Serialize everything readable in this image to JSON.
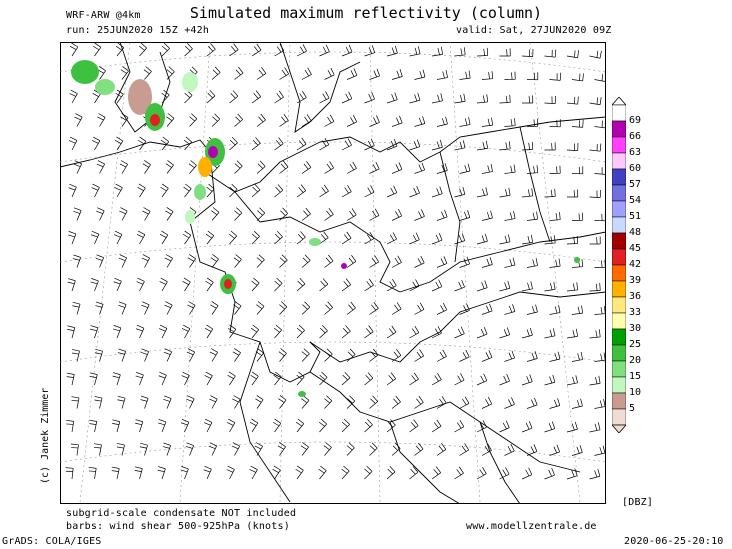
{
  "header": {
    "model": "WRF-ARW @4km",
    "title": "Simulated maximum reflectivity (column)",
    "run": "run: 25JUN2020 15Z +42h",
    "valid": "valid: Sat, 27JUN2020 09Z"
  },
  "legend": {
    "unit": "[DBZ]",
    "levels": [
      "69",
      "66",
      "63",
      "60",
      "57",
      "54",
      "51",
      "48",
      "45",
      "42",
      "39",
      "36",
      "33",
      "30",
      "25",
      "20",
      "15",
      "10",
      "5"
    ],
    "colors": [
      "#ffffff",
      "#b000b0",
      "#ff40ff",
      "#ffc8ff",
      "#4040c0",
      "#7070e0",
      "#a0a0ff",
      "#c8d8ff",
      "#a00000",
      "#e02020",
      "#ff6a00",
      "#ffb000",
      "#ffe880",
      "#ffffb0",
      "#00a000",
      "#40c040",
      "#80e080",
      "#c0f8c0",
      "#c89c90",
      "#f0dcd4"
    ]
  },
  "footer": {
    "note1": "subgrid-scale condensate NOT included",
    "note2": "barbs: wind shear 500-925hPa (knots)",
    "website": "www.modellzentrale.de",
    "grads": "GrADS: COLA/IGES",
    "timestamp": "2020-06-25-20:10",
    "credit": "(c) Janek Zimmer"
  }
}
